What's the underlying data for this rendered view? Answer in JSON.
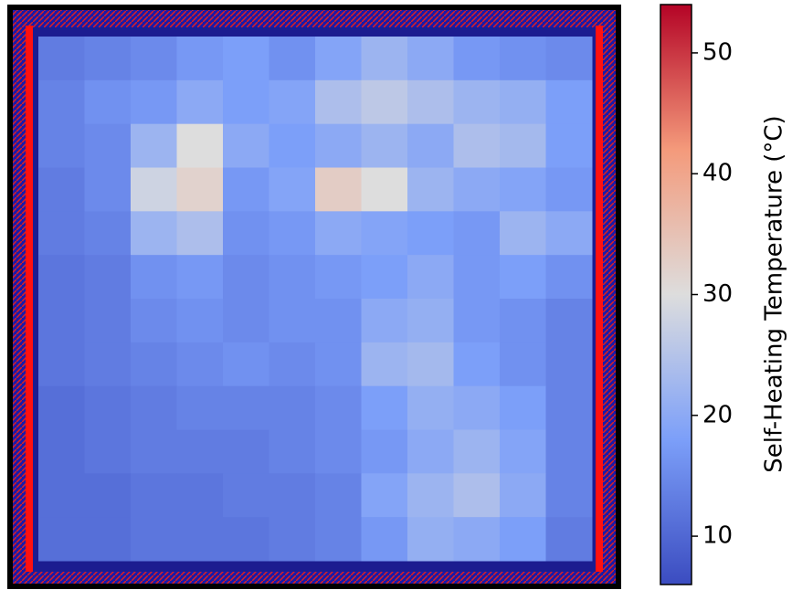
{
  "chart_data": {
    "type": "heatmap",
    "colorbar_label": "Self-Heating Temperature (°C)",
    "colormap": "coolwarm",
    "clim": [
      6,
      54
    ],
    "cticks": [
      10,
      20,
      30,
      40,
      50
    ],
    "z": [
      [
        13,
        14,
        15,
        17,
        18,
        16,
        19,
        22,
        20,
        17,
        16,
        15
      ],
      [
        14,
        16,
        17,
        20,
        18,
        19,
        24,
        26,
        24,
        22,
        21,
        18
      ],
      [
        14,
        15,
        22,
        30,
        20,
        18,
        20,
        22,
        20,
        24,
        23,
        18
      ],
      [
        13,
        15,
        28,
        32,
        17,
        19,
        33,
        30,
        22,
        20,
        19,
        17
      ],
      [
        13,
        14,
        22,
        24,
        16,
        17,
        20,
        19,
        18,
        17,
        22,
        20
      ],
      [
        12,
        13,
        16,
        17,
        15,
        16,
        17,
        18,
        20,
        17,
        18,
        16
      ],
      [
        12,
        13,
        15,
        16,
        15,
        16,
        16,
        20,
        21,
        17,
        16,
        14
      ],
      [
        12,
        13,
        14,
        15,
        16,
        15,
        16,
        22,
        23,
        18,
        16,
        14
      ],
      [
        11,
        12,
        13,
        14,
        14,
        14,
        15,
        18,
        21,
        20,
        18,
        14
      ],
      [
        11,
        12,
        13,
        13,
        13,
        14,
        15,
        17,
        20,
        22,
        19,
        14
      ],
      [
        11,
        11,
        12,
        12,
        13,
        13,
        14,
        19,
        22,
        24,
        20,
        14
      ],
      [
        11,
        11,
        12,
        12,
        12,
        13,
        14,
        17,
        21,
        20,
        18,
        13
      ]
    ]
  }
}
